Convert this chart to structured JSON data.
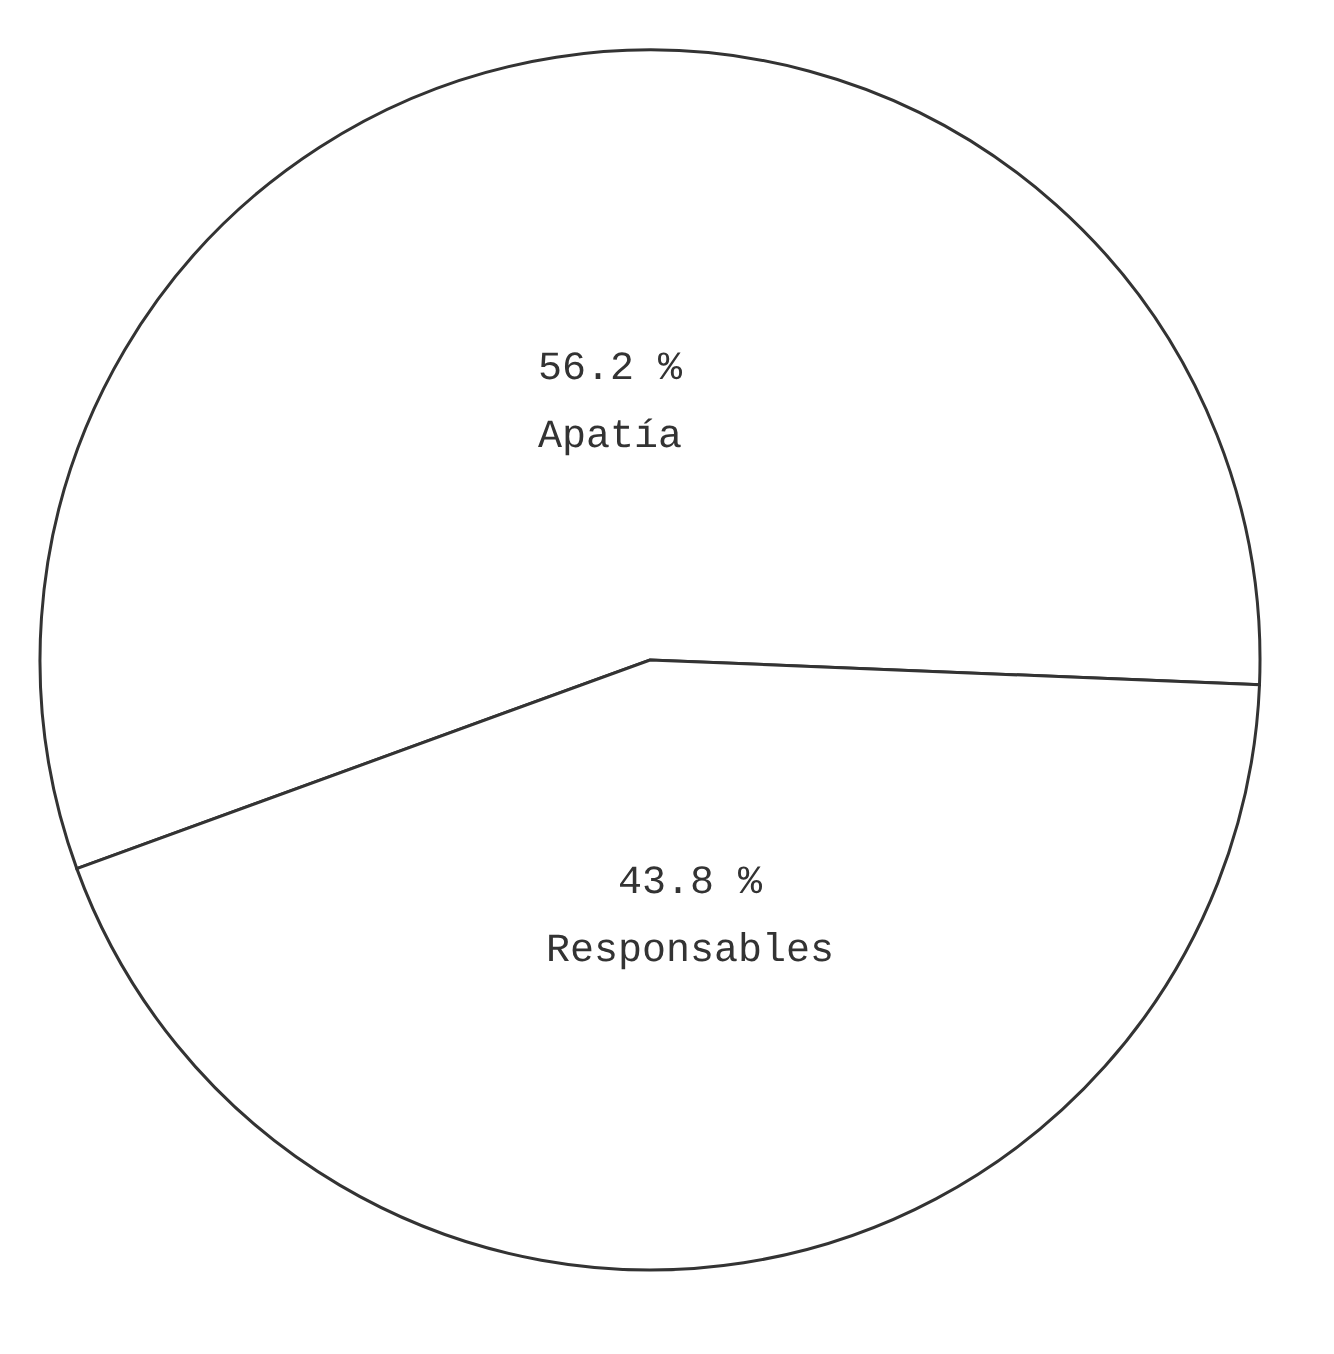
{
  "chart_data": {
    "type": "pie",
    "categories": [
      "Apatía",
      "Responsables"
    ],
    "values": [
      56.2,
      43.8
    ],
    "colors": [
      "#ffffff",
      "#ffffff"
    ],
    "value_labels": [
      "56.2 %",
      "43.8 %"
    ],
    "legend": false
  }
}
